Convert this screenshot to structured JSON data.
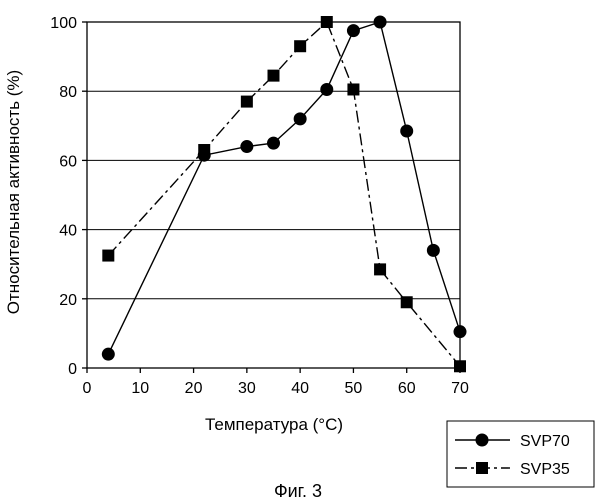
{
  "chart_data": {
    "type": "line",
    "title": "",
    "xlabel": "Температура (°C)",
    "ylabel": "Относительная активность (%)",
    "xlim": [
      0,
      70
    ],
    "ylim": [
      0,
      100
    ],
    "x_ticks": [
      0,
      10,
      20,
      30,
      40,
      50,
      60,
      70
    ],
    "y_ticks": [
      0,
      20,
      40,
      60,
      80,
      100
    ],
    "grid": "horizontal",
    "legend_position": "bottom-right",
    "series": [
      {
        "name": "SVP70",
        "marker": "circle",
        "line_style": "solid",
        "points": [
          [
            4,
            4
          ],
          [
            22,
            61.5
          ],
          [
            30,
            64
          ],
          [
            35,
            65
          ],
          [
            40,
            72
          ],
          [
            45,
            80.5
          ],
          [
            50,
            97.5
          ],
          [
            55,
            100
          ],
          [
            60,
            68.5
          ],
          [
            65,
            34
          ],
          [
            70,
            10.5
          ]
        ]
      },
      {
        "name": "SVP35",
        "marker": "square",
        "line_style": "dash-dot",
        "points": [
          [
            4,
            32.5
          ],
          [
            22,
            63
          ],
          [
            30,
            77
          ],
          [
            35,
            84.5
          ],
          [
            40,
            93
          ],
          [
            45,
            100
          ],
          [
            50,
            80.5
          ],
          [
            55,
            28.5
          ],
          [
            60,
            19
          ],
          [
            70,
            0.5
          ]
        ]
      }
    ],
    "caption": "Фиг. 3"
  }
}
